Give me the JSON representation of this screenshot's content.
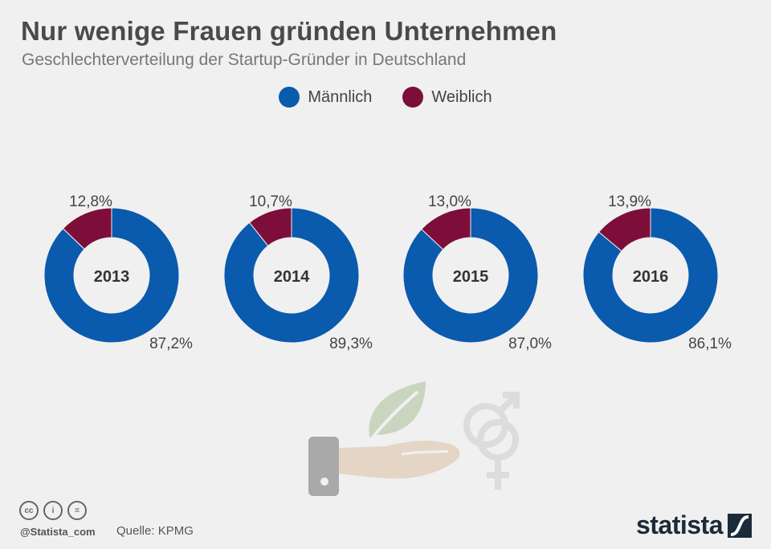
{
  "title": "Nur wenige Frauen gründen Unternehmen",
  "subtitle": "Geschlechterverteilung der Startup-Gründer in Deutschland",
  "colors": {
    "male": "#0a5aad",
    "female": "#7d0e3a",
    "background": "#f0f0f0"
  },
  "chart_data": {
    "type": "pie",
    "style": "donut",
    "legend": [
      "Männlich",
      "Weiblich"
    ],
    "charts": [
      {
        "year": "2013",
        "male": 87.2,
        "female": 12.8,
        "male_label": "87,2%",
        "female_label": "12,8%"
      },
      {
        "year": "2014",
        "male": 89.3,
        "female": 10.7,
        "male_label": "89,3%",
        "female_label": "10,7%"
      },
      {
        "year": "2015",
        "male": 87.0,
        "female": 13.0,
        "male_label": "87,0%",
        "female_label": "13,0%"
      },
      {
        "year": "2016",
        "male": 86.1,
        "female": 13.9,
        "male_label": "86,1%",
        "female_label": "13,9%"
      }
    ]
  },
  "footer": {
    "source": "Quelle: KPMG",
    "handle": "@Statista_com",
    "brand": "statista",
    "cc_icons": [
      "cc",
      "by",
      "nd"
    ]
  }
}
